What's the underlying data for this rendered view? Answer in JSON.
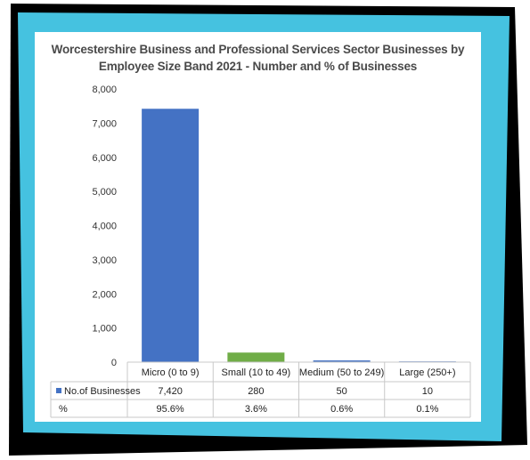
{
  "chart_data": {
    "type": "bar",
    "title_line1": "Worcestershire Business and Professional Services Sector Businesses by",
    "title_line2": "Employee Size Band 2021 - Number and % of Businesses",
    "categories": [
      "Micro (0 to 9)",
      "Small (10 to 49)",
      "Medium (50 to 249)",
      "Large (250+)"
    ],
    "series": [
      {
        "name": "No.of Businesses",
        "values": [
          7420,
          280,
          50,
          10
        ],
        "labels": [
          "7,420",
          "280",
          "50",
          "10"
        ],
        "colors": [
          "#4472c4",
          "#70ad47",
          "#4472c4",
          "#4472c4"
        ]
      }
    ],
    "table_rows": [
      {
        "label": "No.of Businesses",
        "marker_color": "#4472c4",
        "cells": [
          "7,420",
          "280",
          "50",
          "10"
        ]
      },
      {
        "label": "%",
        "marker_color": "",
        "cells": [
          "95.6%",
          "3.6%",
          "0.6%",
          "0.1%"
        ]
      }
    ],
    "y_ticks": [
      {
        "value": 0,
        "label": "0"
      },
      {
        "value": 1000,
        "label": "1,000"
      },
      {
        "value": 2000,
        "label": "2,000"
      },
      {
        "value": 3000,
        "label": "3,000"
      },
      {
        "value": 4000,
        "label": "4,000"
      },
      {
        "value": 5000,
        "label": "5,000"
      },
      {
        "value": 6000,
        "label": "6,000"
      },
      {
        "value": 7000,
        "label": "7,000"
      },
      {
        "value": 8000,
        "label": "8,000"
      }
    ],
    "ylim": [
      0,
      8000
    ],
    "grid": false,
    "legend": "data-table"
  },
  "frame_colors": {
    "border": "#45c2e0",
    "outline": "#000000"
  }
}
